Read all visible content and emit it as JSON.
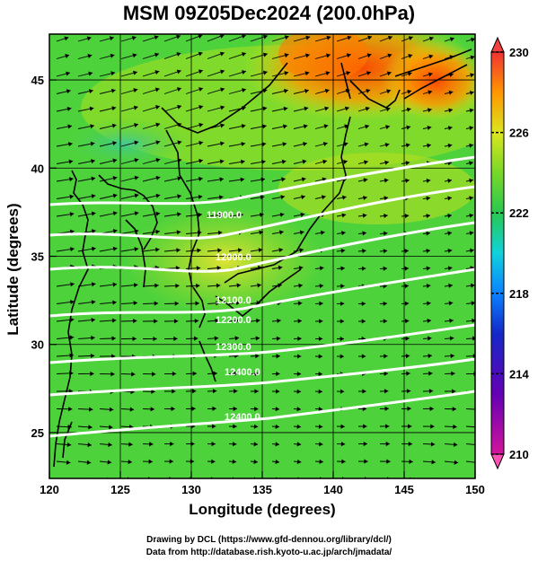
{
  "title": "MSM 09Z05Dec2024 (200.0hPa)",
  "xlabel": "Longitude (degrees)",
  "ylabel": "Latitude  (degrees)",
  "credits": {
    "line1": "Drawing by DCL (https://www.gfd-dennou.org/library/dcl/)",
    "line2": "Data from http://database.rish.kyoto-u.ac.jp/arch/jmadata/"
  },
  "map": {
    "lon_range": [
      120,
      150
    ],
    "lat_range": [
      22.4,
      47.6
    ],
    "lon_ticks": [
      "120",
      "125",
      "130",
      "135",
      "140",
      "145",
      "150"
    ],
    "lat_ticks": [
      "25",
      "30",
      "35",
      "40",
      "45"
    ],
    "field": "temperature (K) shaded, wind vectors, geopotential height contours",
    "contour_labels": [
      "11900.0",
      "12000.0",
      "12100.0",
      "12200.0",
      "12300.0",
      "12400.0"
    ]
  },
  "colorbar": {
    "ticks": [
      "230",
      "226",
      "222",
      "218",
      "214",
      "210"
    ],
    "min": 210,
    "max": 230,
    "colors": [
      "#ff3c8c",
      "#c8148c",
      "#7800b4",
      "#1e1ecd",
      "#0a64ff",
      "#00b4ff",
      "#1ee6c8",
      "#2dd25a",
      "#50d23c",
      "#8cdc28",
      "#d2e61e",
      "#ffd700",
      "#ffa000",
      "#ff6400",
      "#f03c3c"
    ]
  }
}
